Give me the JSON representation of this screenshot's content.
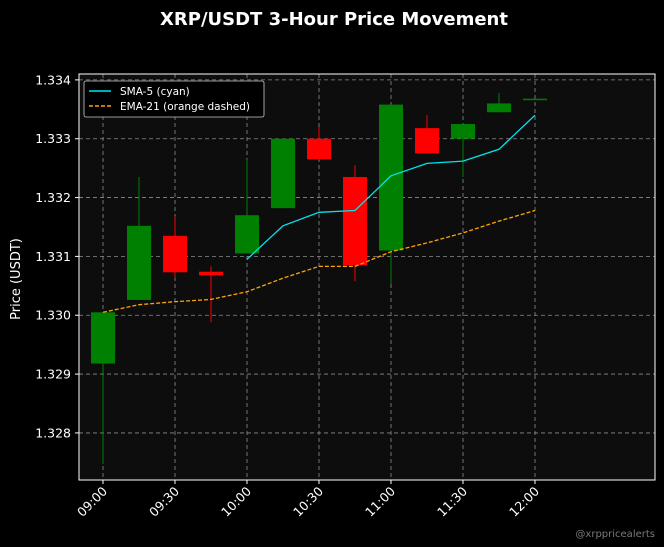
{
  "chart_data": {
    "type": "candlestick",
    "title": "XRP/USDT 3-Hour Price Movement",
    "xlabel": "",
    "ylabel": "Price (USDT)",
    "ylim": [
      1.3272,
      1.3341
    ],
    "xlim": [
      "08:50",
      "12:50"
    ],
    "x_ticks": [
      "09:00",
      "09:30",
      "10:00",
      "10:30",
      "11:00",
      "11:30",
      "12:00"
    ],
    "y_ticks": [
      "1.328",
      "1.329",
      "1.330",
      "1.331",
      "1.332",
      "1.333",
      "1.334"
    ],
    "grid": true,
    "legend_position": "top-left",
    "colors": {
      "background": "#000000",
      "plot_area": "#0d0d0d",
      "up": "#008000",
      "down": "#ff0000",
      "sma": "#00e5ee",
      "ema": "#ffa500",
      "grid": "#8c8c8c"
    },
    "candles": [
      {
        "time": "09:00",
        "open": 1.32918,
        "high": 1.33005,
        "low": 1.32747,
        "close": 1.33005
      },
      {
        "time": "09:15",
        "open": 1.33026,
        "high": 1.33235,
        "low": 1.33026,
        "close": 1.33152
      },
      {
        "time": "09:30",
        "open": 1.33135,
        "high": 1.33168,
        "low": 1.33064,
        "close": 1.33073
      },
      {
        "time": "09:45",
        "open": 1.33074,
        "high": 1.33083,
        "low": 1.32988,
        "close": 1.33068
      },
      {
        "time": "10:00",
        "open": 1.33105,
        "high": 1.33265,
        "low": 1.33105,
        "close": 1.3317
      },
      {
        "time": "10:15",
        "open": 1.33182,
        "high": 1.333,
        "low": 1.33182,
        "close": 1.333
      },
      {
        "time": "10:30",
        "open": 1.333,
        "high": 1.3332,
        "low": 1.33265,
        "close": 1.33265
      },
      {
        "time": "10:45",
        "open": 1.33235,
        "high": 1.33255,
        "low": 1.33058,
        "close": 1.33085
      },
      {
        "time": "11:00",
        "open": 1.3311,
        "high": 1.33358,
        "low": 1.33053,
        "close": 1.33358
      },
      {
        "time": "11:15",
        "open": 1.33318,
        "high": 1.3334,
        "low": 1.33275,
        "close": 1.33275
      },
      {
        "time": "11:30",
        "open": 1.333,
        "high": 1.33325,
        "low": 1.33235,
        "close": 1.33325
      },
      {
        "time": "11:45",
        "open": 1.33345,
        "high": 1.33378,
        "low": 1.33345,
        "close": 1.3336
      },
      {
        "time": "12:00",
        "open": 1.33368,
        "high": 1.33368,
        "low": 1.33368,
        "close": 1.33368
      }
    ],
    "series": [
      {
        "name": "SMA-5 (cyan)",
        "style": "solid",
        "x": [
          "10:00",
          "10:15",
          "10:30",
          "10:45",
          "11:00",
          "11:15",
          "11:30",
          "11:45",
          "12:00"
        ],
        "values": [
          1.33095,
          1.33152,
          1.33175,
          1.33178,
          1.33237,
          1.33258,
          1.33262,
          1.33282,
          1.3334
        ]
      },
      {
        "name": "EMA-21 (orange dashed)",
        "style": "dashed",
        "x": [
          "09:00",
          "09:15",
          "09:30",
          "09:45",
          "10:00",
          "10:15",
          "10:30",
          "10:45",
          "11:00",
          "11:15",
          "11:30",
          "11:45",
          "12:00"
        ],
        "values": [
          1.33005,
          1.33018,
          1.33023,
          1.33027,
          1.3304,
          1.33063,
          1.33083,
          1.33083,
          1.33108,
          1.33123,
          1.3314,
          1.3316,
          1.33178
        ]
      }
    ],
    "watermark": "@xrppricealerts"
  }
}
